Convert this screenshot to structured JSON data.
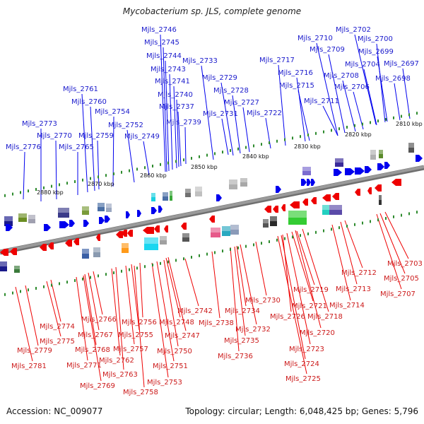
{
  "title": "Mycobacterium sp. JLS, complete genome",
  "footer": {
    "accession": "Accession: NC_009077",
    "summary": "Topology: circular; Length: 6,048,425 bp; Genes: 5,796"
  },
  "colors": {
    "forward": "#0000ee",
    "reverse": "#ee0000",
    "label_forward": "#1a1acc",
    "label_reverse": "#cc1a1a",
    "backbone": "#9a9a9a",
    "tick": "#2e8b2e"
  },
  "ruler": [
    "2880 kbp",
    "2870 kbp",
    "2860 kbp",
    "2850 kbp",
    "2840 kbp",
    "2830 kbp",
    "2820 kbp",
    "2810 kbp"
  ],
  "top_genes": [
    "Mjls_2776",
    "Mjls_2773",
    "Mjls_2770",
    "Mjls_2765",
    "Mjls_2761",
    "Mjls_2760",
    "Mjls_2759",
    "Mjls_2754",
    "Mjls_2752",
    "Mjls_2749",
    "Mjls_2746",
    "Mjls_2745",
    "Mjls_2744",
    "Mjls_2743",
    "Mjls_2741",
    "Mjls_2740",
    "Mjls_2737",
    "Mjls_2739",
    "Mjls_2733",
    "Mjls_2729",
    "Mjls_2728",
    "Mjls_2727",
    "Mjls_2731",
    "Mjls_2722",
    "Mjls_2717",
    "Mjls_2716",
    "Mjls_2715",
    "Mjls_2710",
    "Mjls_2709",
    "Mjls_2711",
    "Mjls_2708",
    "Mjls_2706",
    "Mjls_2702",
    "Mjls_2700",
    "Mjls_2699",
    "Mjls_2704",
    "Mjls_2697",
    "Mjls_2698"
  ],
  "bottom_genes": [
    "Mjls_2703",
    "Mjls_2705",
    "Mjls_2707",
    "Mjls_2712",
    "Mjls_2713",
    "Mjls_2714",
    "Mjls_2719",
    "Mjls_2721",
    "Mjls_2718",
    "Mjls_2720",
    "Mjls_2726",
    "Mjls_2723",
    "Mjls_2724",
    "Mjls_2725",
    "Mjls_2730",
    "Mjls_2734",
    "Mjls_2732",
    "Mjls_2735",
    "Mjls_2736",
    "Mjls_2742",
    "Mjls_2738",
    "Mjls_2748",
    "Mjls_2747",
    "Mjls_2750",
    "Mjls_2751",
    "Mjls_2753",
    "Mjls_2758",
    "Mjls_2756",
    "Mjls_2755",
    "Mjls_2757",
    "Mjls_2762",
    "Mjls_2763",
    "Mjls_2766",
    "Mjls_2767",
    "Mjls_2768",
    "Mjls_2769",
    "Mjls_2771",
    "Mjls_2774",
    "Mjls_2775",
    "Mjls_2779",
    "Mjls_2781"
  ]
}
